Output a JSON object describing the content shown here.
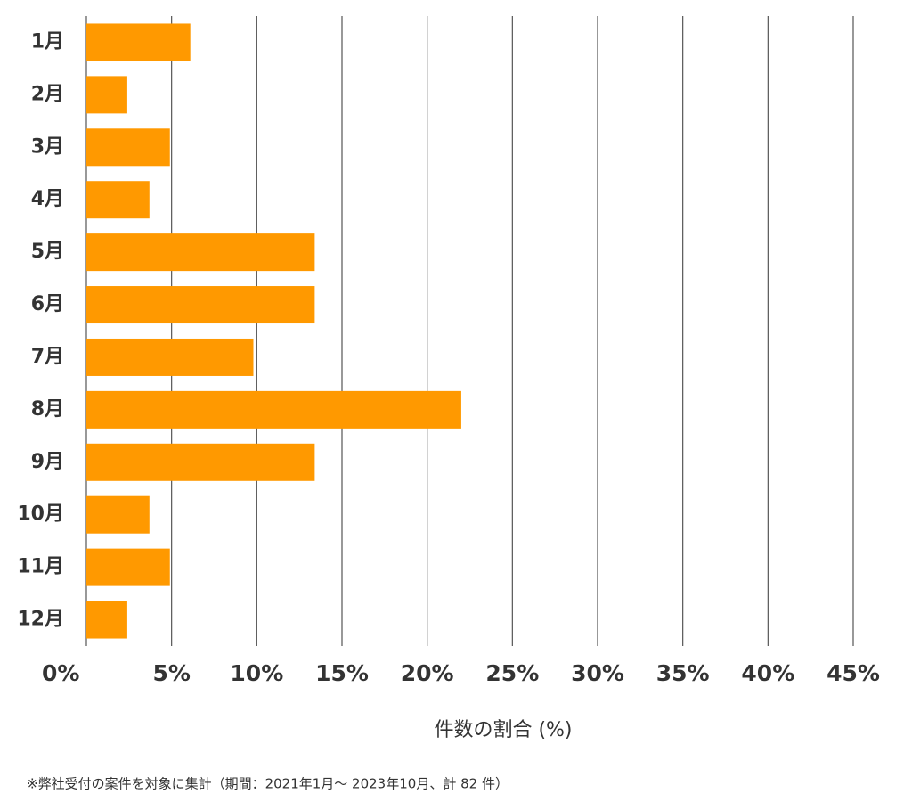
{
  "chart_data": {
    "type": "hbar",
    "categories": [
      "1月",
      "2月",
      "3月",
      "4月",
      "5月",
      "6月",
      "7月",
      "8月",
      "9月",
      "10月",
      "11月",
      "12月"
    ],
    "values": [
      6.1,
      2.4,
      4.9,
      3.7,
      13.4,
      13.4,
      9.8,
      22.0,
      13.4,
      3.7,
      4.9,
      2.4
    ],
    "color": "#ff9900",
    "xlim": [
      0,
      45
    ],
    "xticks": [
      {
        "value": 0,
        "label": "0%"
      },
      {
        "value": 5,
        "label": "5%"
      },
      {
        "value": 10,
        "label": "10%"
      },
      {
        "value": 15,
        "label": "15%"
      },
      {
        "value": 20,
        "label": "20%"
      },
      {
        "value": 25,
        "label": "25%"
      },
      {
        "value": 30,
        "label": "30%"
      },
      {
        "value": 35,
        "label": "35%"
      },
      {
        "value": 40,
        "label": "40%"
      },
      {
        "value": 45,
        "label": "45%"
      }
    ],
    "grid": true,
    "x_label": "件数の割合 (%)",
    "note": "※弊社受付の案件を対象に集計（期間：2021年1月～ 2023年10月、計 82 件）"
  }
}
